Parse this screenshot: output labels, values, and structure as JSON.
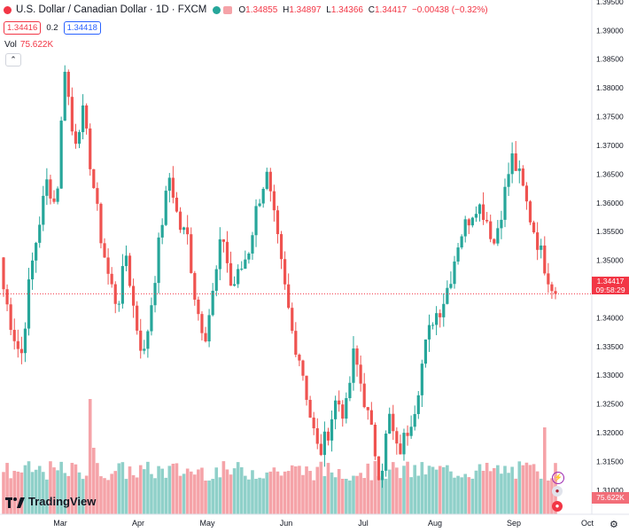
{
  "header": {
    "title": "U.S. Dollar / Canadian Dollar · 1D · FXCM",
    "open_label": "O",
    "open": "1.34855",
    "high_label": "H",
    "high": "1.34897",
    "low_label": "L",
    "low": "1.34366",
    "close_label": "C",
    "close": "1.34417",
    "change": "−0.00438 (−0.32%)",
    "bid": "1.34416",
    "spread": "0.2",
    "ask": "1.34418"
  },
  "volume_legend": {
    "label": "Vol",
    "value": "75.622K"
  },
  "price_tag": {
    "price": "1.34417",
    "countdown": "09:58:29"
  },
  "volume_tag": "75.622K",
  "branding": "TradingView",
  "colors": {
    "up": "#26a69a",
    "down": "#ef5350",
    "vol_up": "#8fd0c9",
    "vol_down": "#f5a3a8",
    "grid": "#f0f3fa",
    "text": "#131722"
  },
  "icons": [
    "tradingview-logo-icon",
    "lightning-event-icon",
    "us-flag-event-icon",
    "canada-flag-event-icon",
    "settings-gear-icon"
  ],
  "chart_data": {
    "type": "candlestick",
    "title": "U.S. Dollar / Canadian Dollar · 1D · FXCM",
    "x_tick_labels": [
      "Mar",
      "Apr",
      "May",
      "Jun",
      "Jul",
      "Aug",
      "Sep",
      "Oct"
    ],
    "y_tick_labels": [
      "1.31000",
      "1.31500",
      "1.32000",
      "1.32500",
      "1.33000",
      "1.33500",
      "1.34000",
      "1.34500",
      "1.35000",
      "1.35500",
      "1.36000",
      "1.36500",
      "1.37000",
      "1.37500",
      "1.38000",
      "1.38500",
      "1.39000",
      "1.39500"
    ],
    "ylim": [
      1.3058,
      1.3953
    ],
    "grid": false,
    "last_price": 1.34417,
    "ohlc_anchors": [
      [
        1.3505,
        1.345
      ],
      [
        1.344,
        1.338
      ],
      [
        1.336,
        1.333
      ],
      [
        1.342,
        1.347
      ],
      [
        1.348,
        1.356
      ],
      [
        1.357,
        1.364
      ],
      [
        1.363,
        1.359
      ],
      [
        1.36,
        1.384
      ],
      [
        1.383,
        1.37
      ],
      [
        1.37,
        1.376
      ],
      [
        1.376,
        1.366
      ],
      [
        1.366,
        1.355
      ],
      [
        1.355,
        1.347
      ],
      [
        1.347,
        1.342
      ],
      [
        1.342,
        1.351
      ],
      [
        1.351,
        1.34
      ],
      [
        1.34,
        1.333
      ],
      [
        1.333,
        1.344
      ],
      [
        1.344,
        1.356
      ],
      [
        1.356,
        1.365
      ],
      [
        1.365,
        1.356
      ],
      [
        1.356,
        1.354
      ],
      [
        1.354,
        1.342
      ],
      [
        1.342,
        1.337
      ],
      [
        1.337,
        1.345
      ],
      [
        1.345,
        1.355
      ],
      [
        1.355,
        1.345
      ],
      [
        1.345,
        1.348
      ],
      [
        1.348,
        1.352
      ],
      [
        1.352,
        1.36
      ],
      [
        1.36,
        1.365
      ],
      [
        1.365,
        1.356
      ],
      [
        1.356,
        1.346
      ],
      [
        1.346,
        1.337
      ],
      [
        1.337,
        1.332
      ],
      [
        1.332,
        1.323
      ],
      [
        1.323,
        1.316
      ],
      [
        1.316,
        1.32
      ],
      [
        1.32,
        1.326
      ],
      [
        1.326,
        1.323
      ],
      [
        1.323,
        1.334
      ],
      [
        1.334,
        1.327
      ],
      [
        1.327,
        1.32
      ],
      [
        1.32,
        1.312
      ],
      [
        1.312,
        1.323
      ],
      [
        1.323,
        1.316
      ],
      [
        1.316,
        1.32
      ],
      [
        1.32,
        1.325
      ],
      [
        1.325,
        1.334
      ],
      [
        1.334,
        1.34
      ],
      [
        1.34,
        1.342
      ],
      [
        1.342,
        1.347
      ],
      [
        1.347,
        1.354
      ],
      [
        1.354,
        1.357
      ],
      [
        1.357,
        1.36
      ],
      [
        1.36,
        1.358
      ],
      [
        1.358,
        1.353
      ],
      [
        1.353,
        1.36
      ],
      [
        1.36,
        1.368
      ],
      [
        1.368,
        1.364
      ],
      [
        1.364,
        1.358
      ],
      [
        1.358,
        1.353
      ],
      [
        1.353,
        1.348
      ],
      [
        1.348,
        1.34417
      ]
    ],
    "volume_note": "volume bars shown as histogram, last bar 75.622K"
  }
}
